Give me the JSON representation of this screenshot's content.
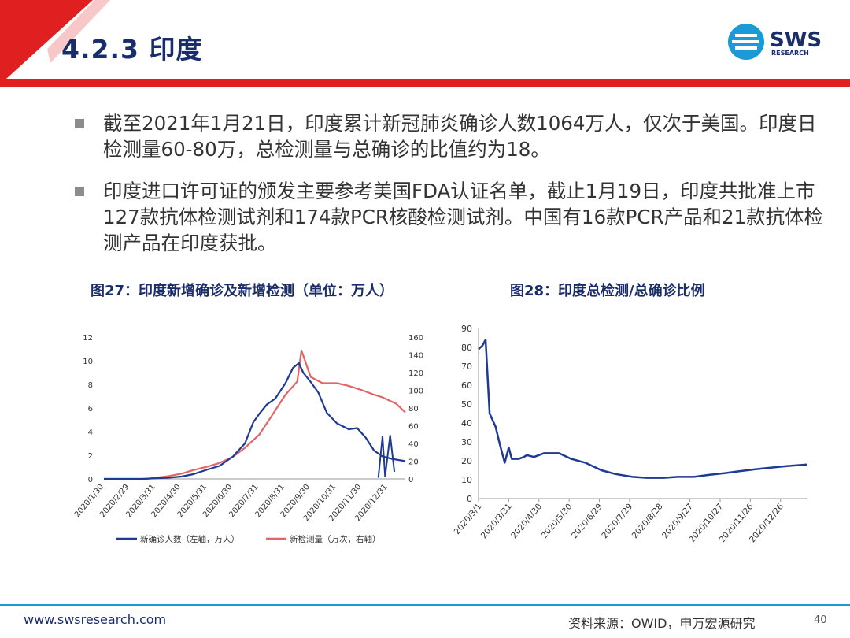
{
  "slide": {
    "title": "4.2.3 印度",
    "logo_text": "SWS",
    "logo_sub": "RESEARCH",
    "bullets": [
      "截至2021年1月21日，印度累计新冠肺炎确诊人数1064万人，仅次于美国。印度日检测量60-80万，总检测量与总确诊的比值约为18。",
      "印度进口许可证的颁发主要参考美国FDA认证名单，截止1月19日，印度共批准上市127款抗体检测试剂和174款PCR核酸检测试剂。中国有16款PCR产品和21款抗体检测产品在印度获批。"
    ],
    "footer_url": "www.swsresearch.com",
    "footer_source": "资料来源：OWID，申万宏源研究",
    "page_number": "40",
    "colors": {
      "title": "#1a2d6b",
      "accent_red": "#e02020",
      "navy": "#1f3a93",
      "salmon": "#e06666"
    }
  },
  "chart_data": [
    {
      "type": "line",
      "title": "图27：印度新增确诊及新增检测（单位：万人）",
      "x_ticks": [
        "2020/1/30",
        "2020/2/29",
        "2020/3/31",
        "2020/4/30",
        "2020/5/31",
        "2020/6/30",
        "2020/7/31",
        "2020/8/31",
        "2020/9/30",
        "2020/10/31",
        "2020/11/30",
        "2020/12/31"
      ],
      "y_left_ticks": [
        "0",
        "2",
        "4",
        "6",
        "8",
        "10",
        "12"
      ],
      "y_right_ticks": [
        "0",
        "20",
        "40",
        "60",
        "80",
        "100",
        "120",
        "140",
        "160"
      ],
      "ylim_left": [
        0,
        12
      ],
      "ylim_right": [
        0,
        160
      ],
      "xlim": [
        "2020/1/30",
        "2021/1/21"
      ],
      "legend_position": "bottom",
      "series": [
        {
          "name": "新确诊人数（左轴，万人）",
          "axis": "left",
          "color": "#1f3a93",
          "points": [
            [
              "2020/1/30",
              0
            ],
            [
              "2020/3/15",
              0
            ],
            [
              "2020/4/15",
              0.1
            ],
            [
              "2020/5/1",
              0.2
            ],
            [
              "2020/5/15",
              0.4
            ],
            [
              "2020/6/1",
              0.8
            ],
            [
              "2020/6/15",
              1.1
            ],
            [
              "2020/7/1",
              1.9
            ],
            [
              "2020/7/15",
              3
            ],
            [
              "2020/7/25",
              4.8
            ],
            [
              "2020/8/1",
              5.5
            ],
            [
              "2020/8/10",
              6.3
            ],
            [
              "2020/8/20",
              6.8
            ],
            [
              "2020/9/1",
              8.1
            ],
            [
              "2020/9/10",
              9.4
            ],
            [
              "2020/9/17",
              9.8
            ],
            [
              "2020/9/22",
              9.0
            ],
            [
              "2020/10/1",
              8.2
            ],
            [
              "2020/10/10",
              7.3
            ],
            [
              "2020/10/20",
              5.6
            ],
            [
              "2020/11/1",
              4.7
            ],
            [
              "2020/11/15",
              4.2
            ],
            [
              "2020/11/25",
              4.3
            ],
            [
              "2020/12/5",
              3.5
            ],
            [
              "2020/12/15",
              2.4
            ],
            [
              "2020/12/25",
              1.9
            ],
            [
              "2021/1/5",
              1.7
            ],
            [
              "2021/1/21",
              1.5
            ]
          ],
          "notable": [
            [
              "2020/12/20",
              0.1
            ],
            [
              "2020/12/25",
              3.6
            ],
            [
              "2020/12/28",
              0.2
            ],
            [
              "2021/1/3",
              3.7
            ],
            [
              "2021/1/8",
              0.6
            ]
          ]
        },
        {
          "name": "新检测量（万次，右轴）",
          "axis": "right",
          "color": "#e06666",
          "points": [
            [
              "2020/1/30",
              0
            ],
            [
              "2020/3/20",
              0
            ],
            [
              "2020/4/15",
              3
            ],
            [
              "2020/5/1",
              6
            ],
            [
              "2020/5/15",
              10
            ],
            [
              "2020/6/1",
              14
            ],
            [
              "2020/6/15",
              18
            ],
            [
              "2020/7/1",
              25
            ],
            [
              "2020/7/15",
              35
            ],
            [
              "2020/8/1",
              50
            ],
            [
              "2020/8/15",
              70
            ],
            [
              "2020/9/1",
              95
            ],
            [
              "2020/9/15",
              110
            ],
            [
              "2020/9/20",
              145
            ],
            [
              "2020/10/1",
              115
            ],
            [
              "2020/10/15",
              108
            ],
            [
              "2020/11/1",
              108
            ],
            [
              "2020/11/15",
              105
            ],
            [
              "2020/12/1",
              100
            ],
            [
              "2020/12/15",
              95
            ],
            [
              "2020/12/25",
              92
            ],
            [
              "2021/1/10",
              85
            ],
            [
              "2021/1/21",
              75
            ]
          ]
        }
      ]
    },
    {
      "type": "line",
      "title": "图28：印度总检测/总确诊比例",
      "x_ticks": [
        "2020/3/1",
        "2020/3/31",
        "2020/4/30",
        "2020/5/30",
        "2020/6/29",
        "2020/7/29",
        "2020/8/28",
        "2020/9/27",
        "2020/10/27",
        "2020/11/26",
        "2020/12/26"
      ],
      "y_ticks": [
        "0",
        "10",
        "20",
        "30",
        "40",
        "50",
        "60",
        "70",
        "80",
        "90"
      ],
      "ylim": [
        0,
        90
      ],
      "xlim": [
        "2020/3/1",
        "2021/1/21"
      ],
      "series": [
        {
          "color": "#1f3a93",
          "points": [
            [
              "2020/3/1",
              79
            ],
            [
              "2020/3/5",
              81
            ],
            [
              "2020/3/8",
              84
            ],
            [
              "2020/3/12",
              45
            ],
            [
              "2020/3/18",
              38
            ],
            [
              "2020/3/22",
              29
            ],
            [
              "2020/3/27",
              19
            ],
            [
              "2020/3/31",
              27
            ],
            [
              "2020/4/3",
              21
            ],
            [
              "2020/4/10",
              21
            ],
            [
              "2020/4/15",
              22
            ],
            [
              "2020/4/18",
              23
            ],
            [
              "2020/4/25",
              22
            ],
            [
              "2020/5/5",
              24
            ],
            [
              "2020/5/20",
              24
            ],
            [
              "2020/6/1",
              21
            ],
            [
              "2020/6/15",
              19
            ],
            [
              "2020/7/1",
              15
            ],
            [
              "2020/7/15",
              13
            ],
            [
              "2020/8/1",
              11.5
            ],
            [
              "2020/8/15",
              11
            ],
            [
              "2020/9/1",
              11
            ],
            [
              "2020/9/15",
              11.5
            ],
            [
              "2020/10/1",
              11.5
            ],
            [
              "2020/10/15",
              12.5
            ],
            [
              "2020/11/1",
              13.5
            ],
            [
              "2020/11/15",
              14.5
            ],
            [
              "2020/12/1",
              15.5
            ],
            [
              "2020/12/15",
              16.3
            ],
            [
              "2021/1/1",
              17.2
            ],
            [
              "2021/1/21",
              18
            ]
          ]
        }
      ]
    }
  ]
}
